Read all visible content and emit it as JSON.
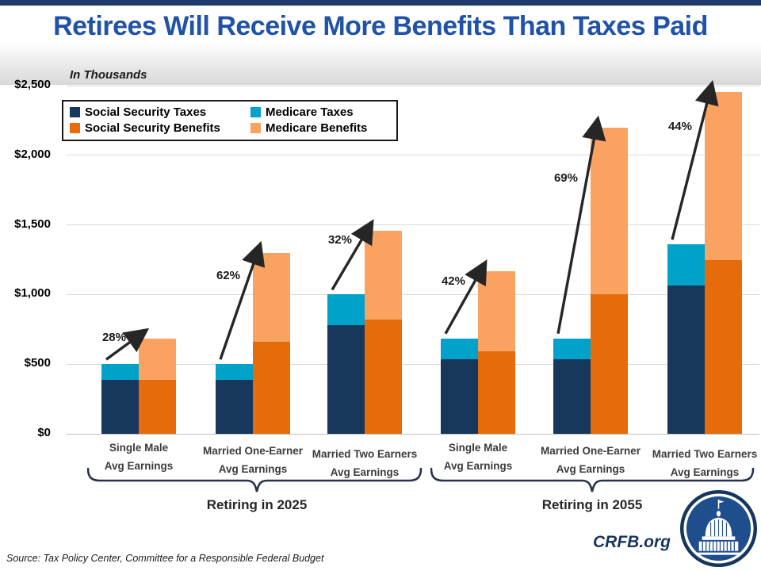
{
  "header": {
    "title": "Retirees Will Receive More Benefits Than Taxes Paid",
    "units_label": "In Thousands"
  },
  "legend": [
    {
      "label": "Social Security Taxes",
      "color": "#17375D"
    },
    {
      "label": "Medicare Taxes",
      "color": "#00A2C9"
    },
    {
      "label": "Social Security Benefits",
      "color": "#E66B0A"
    },
    {
      "label": "Medicare Benefits",
      "color": "#F9A261"
    }
  ],
  "colors": {
    "social_security_taxes": "#17375D",
    "medicare_taxes": "#00A2C9",
    "social_security_benefits": "#E66B0A",
    "medicare_benefits": "#F9A261",
    "title_blue": "#2052A8",
    "top_band": "#203A6B",
    "arrow": "#262626",
    "brace": "#26324E",
    "gridline": "#D9D9D9",
    "baseline": "#BFBFBF",
    "brand_navy": "#17365D"
  },
  "chart_data": {
    "type": "bar",
    "title": "Retirees Will Receive More Benefits Than Taxes Paid",
    "units_label": "In Thousands",
    "ylim": [
      0,
      2500
    ],
    "y_tick_values": [
      0,
      500,
      1000,
      1500,
      2000,
      2500
    ],
    "y_tick_labels": [
      "$0",
      "$500",
      "$1,000",
      "$1,500",
      "$2,000",
      "$2,500"
    ],
    "grid": true,
    "legend_position": "top-left",
    "series": [
      "Social Security Taxes",
      "Medicare Taxes",
      "Social Security Benefits",
      "Medicare Benefits"
    ],
    "groups": [
      {
        "cluster": "Retiring in 2025",
        "category_line1": "Single Male",
        "category_line2": "Avg Earnings",
        "taxes_stack": {
          "social_security_taxes": 385,
          "medicare_taxes": 115,
          "total": 500
        },
        "benefits_stack": {
          "social_security_benefits": 390,
          "medicare_benefits": 295,
          "total": 685
        },
        "benefits_vs_taxes_label": "28%"
      },
      {
        "cluster": "Retiring in 2025",
        "category_line1": "Married  One-Earner",
        "category_line2": "Avg Earnings",
        "taxes_stack": {
          "social_security_taxes": 385,
          "medicare_taxes": 115,
          "total": 500
        },
        "benefits_stack": {
          "social_security_benefits": 660,
          "medicare_benefits": 640,
          "total": 1300
        },
        "benefits_vs_taxes_label": "62%"
      },
      {
        "cluster": "Retiring in 2025",
        "category_line1": "Married Two Earners",
        "category_line2": "Avg Earnings",
        "taxes_stack": {
          "social_security_taxes": 780,
          "medicare_taxes": 220,
          "total": 1000
        },
        "benefits_stack": {
          "social_security_benefits": 820,
          "medicare_benefits": 640,
          "total": 1460
        },
        "benefits_vs_taxes_label": "32%"
      },
      {
        "cluster": "Retiring in 2055",
        "category_line1": "Single Male",
        "category_line2": "Avg Earnings",
        "taxes_stack": {
          "social_security_taxes": 535,
          "medicare_taxes": 150,
          "total": 685
        },
        "benefits_stack": {
          "social_security_benefits": 595,
          "medicare_benefits": 575,
          "total": 1170
        },
        "benefits_vs_taxes_label": "42%"
      },
      {
        "cluster": "Retiring in 2055",
        "category_line1": "Married  One-Earner",
        "category_line2": "Avg Earnings",
        "taxes_stack": {
          "social_security_taxes": 535,
          "medicare_taxes": 150,
          "total": 685
        },
        "benefits_stack": {
          "social_security_benefits": 1000,
          "medicare_benefits": 1200,
          "total": 2200
        },
        "benefits_vs_taxes_label": "69%"
      },
      {
        "cluster": "Retiring in 2055",
        "category_line1": "Married Two Earners",
        "category_line2": "Avg Earnings",
        "taxes_stack": {
          "social_security_taxes": 1065,
          "medicare_taxes": 295,
          "total": 1360
        },
        "benefits_stack": {
          "social_security_benefits": 1245,
          "medicare_benefits": 1210,
          "total": 2455
        },
        "benefits_vs_taxes_label": "44%"
      }
    ],
    "clusters": [
      {
        "label": "Retiring in 2025",
        "groups": [
          0,
          1,
          2
        ]
      },
      {
        "label": "Retiring in 2055",
        "groups": [
          3,
          4,
          5
        ]
      }
    ]
  },
  "footer": {
    "source": "Source: Tax Policy Center, Committee for a Responsible Federal Budget",
    "brand": "CRFB.org",
    "logo": "capitol-dome-icon"
  }
}
